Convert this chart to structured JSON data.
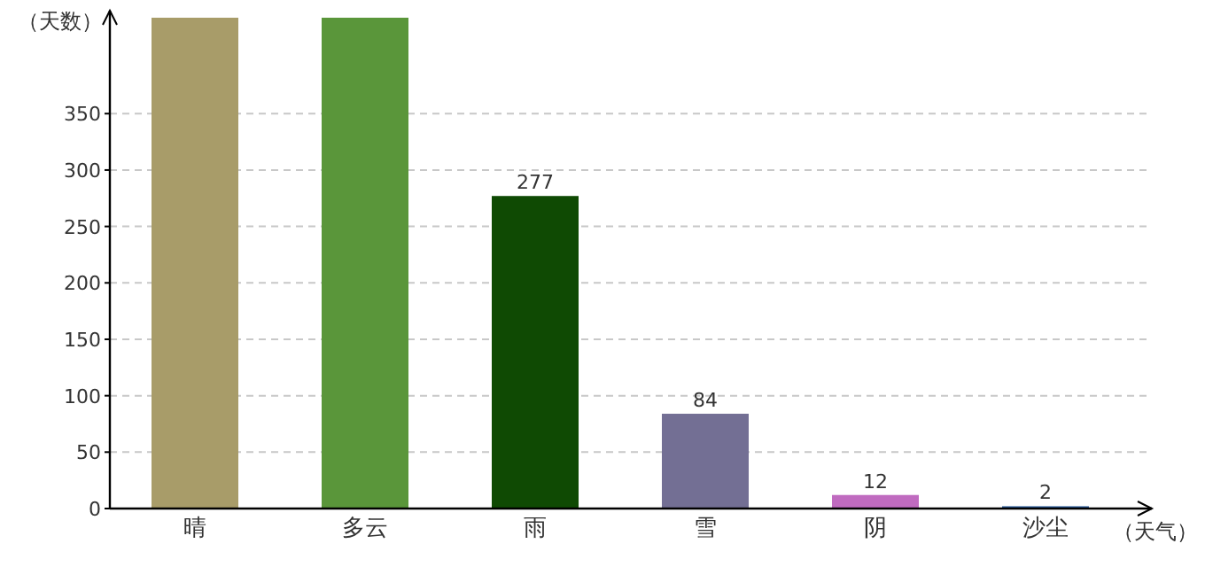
{
  "chart_data": {
    "type": "bar",
    "xlabel": "（天气）",
    "ylabel": "（天数）",
    "categories": [
      "晴",
      "多云",
      "雨",
      "雪",
      "阴",
      "沙尘"
    ],
    "values": [
      435,
      435,
      277,
      84,
      12,
      2
    ],
    "value_labels": [
      null,
      null,
      "277",
      "84",
      "12",
      "2"
    ],
    "colors": [
      "#a89c69",
      "#5a963a",
      "#0f4a03",
      "#736f94",
      "#c06bc0",
      "#2a5a9a"
    ],
    "ylim": [
      0,
      435
    ],
    "yticks": [
      0,
      50,
      100,
      150,
      200,
      250,
      300,
      350
    ],
    "grid": "y"
  }
}
